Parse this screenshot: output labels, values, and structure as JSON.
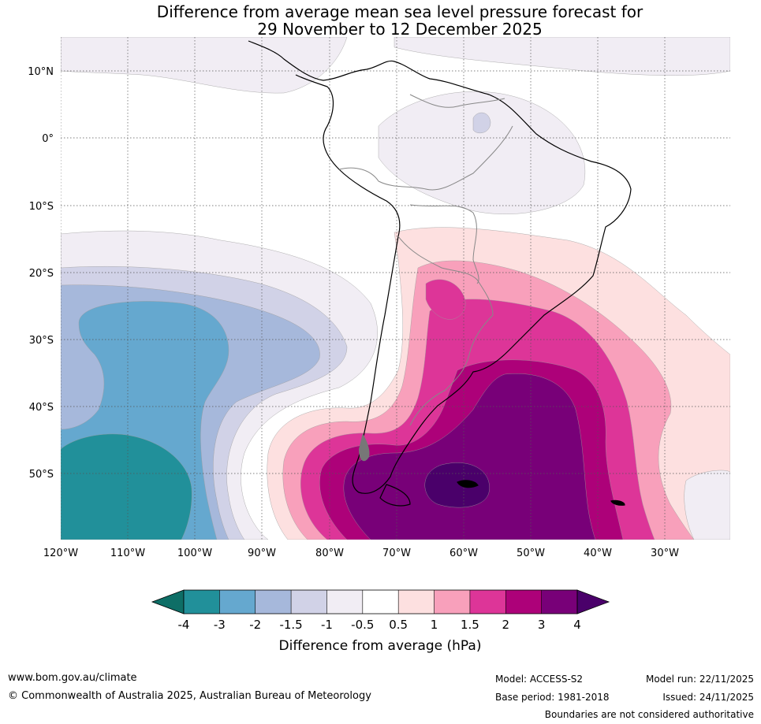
{
  "title": {
    "line1": "Difference from average mean sea level pressure forecast for",
    "line2": "29 November to 12 December 2025"
  },
  "map": {
    "latitude_labels": [
      "10°N",
      "0°",
      "10°S",
      "20°S",
      "30°S",
      "40°S",
      "50°S"
    ],
    "longitude_labels": [
      "120°W",
      "110°W",
      "100°W",
      "90°W",
      "80°W",
      "70°W",
      "60°W",
      "50°W",
      "40°W",
      "30°W"
    ]
  },
  "colorbar": {
    "title": "Difference from average (hPa)",
    "tick_labels": [
      "-4",
      "-3",
      "-2",
      "-1.5",
      "-1",
      "-0.5",
      "0.5",
      "1",
      "1.5",
      "2",
      "3",
      "4"
    ],
    "colors": {
      "below_min": "#0e6e66",
      "bins": [
        "#21909a",
        "#65a8cf",
        "#a6b8db",
        "#d1d2e7",
        "#f1edf4",
        "#ffffff",
        "#fde0e0",
        "#f8a0bb",
        "#dd3598",
        "#ad0179",
        "#780078"
      ],
      "above_max": "#4a006a"
    }
  },
  "footer": {
    "website": "www.bom.gov.au/climate",
    "copyright": "© Commonwealth of Australia 2025, Australian Bureau of Meteorology",
    "model": "Model: ACCESS-S2",
    "base_period": "Base period: 1981-2018",
    "model_run": "Model run: 22/11/2025",
    "issued": "Issued: 24/11/2025",
    "disclaimer": "Boundaries are not considered authoritative"
  }
}
